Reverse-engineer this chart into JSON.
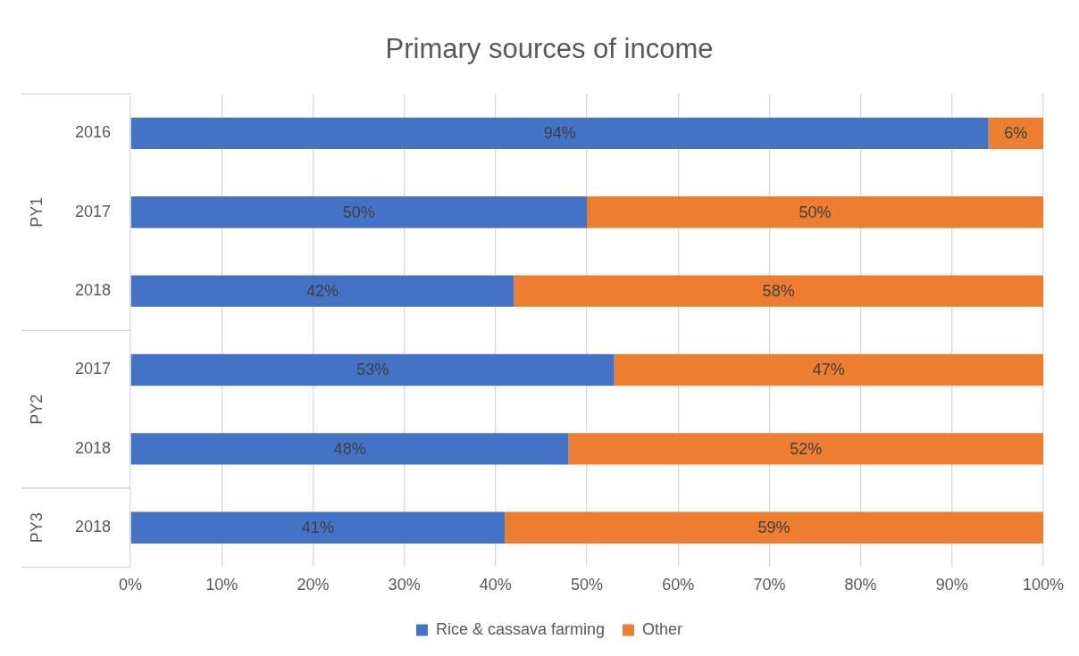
{
  "chart_data": {
    "type": "bar",
    "orientation": "horizontal",
    "stacked": true,
    "title": "Primary sources of income",
    "categories": [
      "2016",
      "2017",
      "2018",
      "2017",
      "2018",
      "2018"
    ],
    "series": [
      {
        "name": "Rice & cassava farming",
        "color": "#4472c4",
        "values": [
          94,
          50,
          42,
          53,
          48,
          41
        ],
        "value_labels": [
          "94%",
          "50%",
          "42%",
          "53%",
          "48%",
          "41%"
        ]
      },
      {
        "name": "Other",
        "color": "#ed7d31",
        "values": [
          6,
          50,
          58,
          47,
          52,
          59
        ],
        "value_labels": [
          "6%",
          "50%",
          "58%",
          "47%",
          "52%",
          "59%"
        ]
      }
    ],
    "xlim": [
      0,
      100
    ],
    "xticks": [
      {
        "value": 0,
        "label": "0%"
      },
      {
        "value": 10,
        "label": "10%"
      },
      {
        "value": 20,
        "label": "20%"
      },
      {
        "value": 30,
        "label": "30%"
      },
      {
        "value": 40,
        "label": "40%"
      },
      {
        "value": 50,
        "label": "50%"
      },
      {
        "value": 60,
        "label": "60%"
      },
      {
        "value": 70,
        "label": "70%"
      },
      {
        "value": 80,
        "label": "80%"
      },
      {
        "value": 90,
        "label": "90%"
      },
      {
        "value": 100,
        "label": "100%"
      }
    ],
    "annotations": [
      "PY1",
      "PY2",
      "PY3"
    ],
    "grid": "x",
    "legend": "bottom"
  }
}
